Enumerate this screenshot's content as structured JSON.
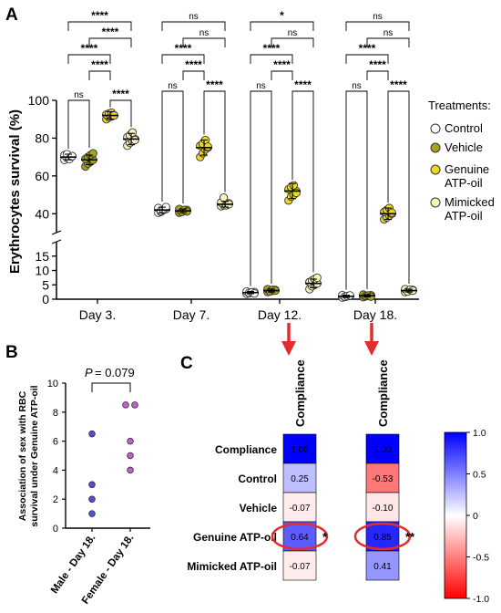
{
  "panels": {
    "a": "A",
    "b": "B",
    "c": "C"
  },
  "chart_data": [
    {
      "panel": "A",
      "type": "scatter",
      "ylabel": "Erythrocytes survival (%)",
      "ylim_lower": [
        0,
        20
      ],
      "ylim_upper": [
        30,
        100
      ],
      "axis_break": true,
      "yticks_upper": [
        40,
        60,
        80,
        100
      ],
      "yticks_lower": [
        0,
        5,
        10,
        15
      ],
      "categories": [
        "Day 3.",
        "Day 7.",
        "Day 12.",
        "Day 18."
      ],
      "legend_title": "Treatments:",
      "legend_position": "right",
      "series": [
        {
          "name": "Control",
          "color": "#ffffff",
          "means": [
            70,
            42,
            2.3,
            1.0
          ],
          "sd": [
            1.5,
            1.5,
            0.4,
            0.4
          ],
          "points": [
            [
              68.5,
              69.5,
              70,
              70.5,
              71,
              71.5,
              69,
              70.5
            ],
            [
              40.5,
              41,
              42,
              42.5,
              43,
              41.5,
              42,
              43.5
            ],
            [
              1.9,
              2.1,
              2.3,
              2.5,
              2.7,
              2.2,
              2.4,
              2.0
            ],
            [
              0.6,
              0.8,
              1.0,
              1.2,
              1.4,
              0.9,
              1.1,
              1.3
            ]
          ]
        },
        {
          "name": "Vehicle",
          "color": "#a4a21e",
          "means": [
            68.5,
            41.5,
            3.0,
            1.2
          ],
          "sd": [
            2.5,
            1.0,
            0.5,
            0.4
          ],
          "points": [
            [
              65,
              66.5,
              67.5,
              68.5,
              69,
              70,
              71,
              72
            ],
            [
              40.5,
              41,
              41.5,
              42,
              42.5,
              41,
              42,
              41.2
            ],
            [
              2.5,
              2.8,
              3.0,
              3.2,
              3.5,
              2.7,
              3.3,
              3.0
            ],
            [
              0.7,
              1.0,
              1.2,
              1.4,
              1.6,
              1.1,
              1.3,
              0.9
            ]
          ]
        },
        {
          "name": "Genuine ATP-oil",
          "color": "#ecd727",
          "means": [
            92,
            75,
            52,
            40
          ],
          "sd": [
            2,
            4,
            4,
            3
          ],
          "points": [
            [
              90,
              91,
              91.5,
              92,
              92.5,
              93,
              93.5,
              92
            ],
            [
              70,
              72,
              74,
              75,
              76,
              77,
              79,
              75.5
            ],
            [
              47,
              49,
              50,
              52,
              53,
              54,
              55,
              51
            ],
            [
              37,
              38,
              39,
              40,
              41,
              42,
              43,
              40.5
            ]
          ]
        },
        {
          "name": "Mimicked ATP-oil",
          "color": "#f7f5ba",
          "means": [
            79.5,
            45,
            5.5,
            3.0
          ],
          "sd": [
            3,
            1.5,
            1.5,
            0.5
          ],
          "points": [
            [
              76,
              77.5,
              78.5,
              79.5,
              80.5,
              81.5,
              83,
              79
            ],
            [
              44,
              44.5,
              45,
              45.5,
              46,
              48.5,
              44.5,
              45
            ],
            [
              3.5,
              4.5,
              5,
              5.5,
              6,
              6.5,
              7,
              7.5
            ],
            [
              2.5,
              2.8,
              3.0,
              3.2,
              3.5,
              2.7,
              3.3,
              3.0
            ]
          ]
        }
      ],
      "significance": [
        {
          "group": "Day 3.",
          "labels": [
            "ns",
            "****",
            "****",
            "****",
            "****",
            "****"
          ]
        },
        {
          "group": "Day 7.",
          "labels": [
            "ns",
            "****",
            "****",
            "****",
            "ns",
            "ns"
          ]
        },
        {
          "group": "Day 12.",
          "labels": [
            "ns",
            "****",
            "****",
            "****",
            "ns",
            "*"
          ]
        },
        {
          "group": "Day 18.",
          "labels": [
            "ns",
            "****",
            "****",
            "****",
            "ns",
            "ns"
          ]
        }
      ]
    },
    {
      "panel": "B",
      "type": "scatter",
      "ylabel_line1": "Association of sex with RBC",
      "ylabel_line2": "survival under Genuine ATP-oil",
      "ylim": [
        0,
        10
      ],
      "yticks": [
        0,
        2,
        4,
        6,
        8,
        10
      ],
      "categories": [
        "Male - Day 18.",
        "Female - Day 18."
      ],
      "p_label": "P",
      "p_value": "= 0.079",
      "series": [
        {
          "name": "Male - Day 18.",
          "color": "#4f52c8",
          "values": [
            1,
            2,
            3,
            6.5
          ]
        },
        {
          "name": "Female - Day 18.",
          "color": "#c45ec8",
          "values": [
            4,
            5,
            6,
            8.5,
            8.5
          ]
        }
      ]
    },
    {
      "panel": "C",
      "type": "heatmap",
      "rows": [
        "Compliance",
        "Control",
        "Vehicle",
        "Genuine ATP-oil",
        "Mimicked ATP-oil"
      ],
      "columns": [
        "Compliance",
        "Compliance"
      ],
      "values": [
        [
          1.0,
          1.0
        ],
        [
          0.25,
          -0.53
        ],
        [
          -0.07,
          -0.1
        ],
        [
          0.64,
          0.85
        ],
        [
          -0.07,
          0.41
        ]
      ],
      "value_labels": [
        [
          "1.00",
          "1.00"
        ],
        [
          "0.25",
          "-0.53"
        ],
        [
          "-0.07",
          "-0.10"
        ],
        [
          "0.64",
          "0.85"
        ],
        [
          "-0.07",
          "0.41"
        ]
      ],
      "highlight_row": "Genuine ATP-oil",
      "significance_marks": [
        "*",
        "**"
      ],
      "colorbar_range": [
        -1.0,
        1.0
      ],
      "colorbar_ticks": [
        "1.0",
        "0.5",
        "0",
        "-0.5",
        "-1.0"
      ]
    }
  ]
}
